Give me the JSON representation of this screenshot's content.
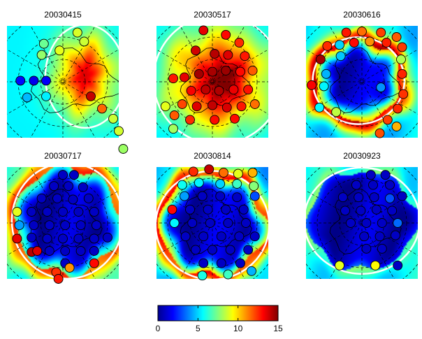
{
  "chart_data": {
    "type": "heatmap",
    "colormap": "jet",
    "colorbar": {
      "range": [
        0,
        15
      ],
      "ticks": [
        "0",
        "5",
        "10",
        "15"
      ]
    },
    "panels": [
      {
        "title": "20030415",
        "field": {
          "type": "blob",
          "center": [
            0.7,
            0.45
          ],
          "peak": 12.5,
          "rx": 0.34,
          "ry": 0.44,
          "background": 5.5
        },
        "contour_color": "#ffffff",
        "stations": [
          {
            "x": 0.31,
            "y": 0.26,
            "v": 7.8
          },
          {
            "x": 0.33,
            "y": 0.16,
            "v": 7.2
          },
          {
            "x": 0.47,
            "y": 0.22,
            "v": 9.0
          },
          {
            "x": 0.63,
            "y": 0.06,
            "v": 8.8
          },
          {
            "x": 0.69,
            "y": 0.14,
            "v": 8.6
          },
          {
            "x": 0.12,
            "y": 0.49,
            "v": 2.0
          },
          {
            "x": 0.24,
            "y": 0.49,
            "v": 1.6
          },
          {
            "x": 0.35,
            "y": 0.49,
            "v": 1.8
          },
          {
            "x": 0.18,
            "y": 0.64,
            "v": 4.6
          },
          {
            "x": 0.35,
            "y": 0.63,
            "v": 5.4
          },
          {
            "x": 0.75,
            "y": 0.63,
            "v": 14.0
          },
          {
            "x": 0.85,
            "y": 0.74,
            "v": 11.6
          },
          {
            "x": 0.95,
            "y": 0.83,
            "v": 8.6
          },
          {
            "x": 1.0,
            "y": 0.94,
            "v": 8.7
          },
          {
            "x": 1.04,
            "y": 1.1,
            "v": 7.9
          }
        ]
      },
      {
        "title": "20030517",
        "field": {
          "type": "blob",
          "center": [
            0.55,
            0.48
          ],
          "peak": 14.5,
          "rx": 0.55,
          "ry": 0.55,
          "background": 5.0
        },
        "contour_color": "#ffffff",
        "stations": [
          {
            "x": 0.42,
            "y": 0.04,
            "v": 13.5
          },
          {
            "x": 0.62,
            "y": 0.08,
            "v": 13.0
          },
          {
            "x": 0.74,
            "y": 0.15,
            "v": 12.5
          },
          {
            "x": 0.35,
            "y": 0.22,
            "v": 13.8
          },
          {
            "x": 0.52,
            "y": 0.25,
            "v": 14.2
          },
          {
            "x": 0.64,
            "y": 0.26,
            "v": 13.6
          },
          {
            "x": 0.79,
            "y": 0.27,
            "v": 12.8
          },
          {
            "x": 0.15,
            "y": 0.47,
            "v": 12.8
          },
          {
            "x": 0.25,
            "y": 0.46,
            "v": 13.5
          },
          {
            "x": 0.38,
            "y": 0.43,
            "v": 14.5
          },
          {
            "x": 0.5,
            "y": 0.41,
            "v": 14.4
          },
          {
            "x": 0.62,
            "y": 0.4,
            "v": 14.6
          },
          {
            "x": 0.75,
            "y": 0.41,
            "v": 13.0
          },
          {
            "x": 0.86,
            "y": 0.4,
            "v": 11.8
          },
          {
            "x": 0.31,
            "y": 0.58,
            "v": 13.2
          },
          {
            "x": 0.44,
            "y": 0.57,
            "v": 14.1
          },
          {
            "x": 0.56,
            "y": 0.58,
            "v": 14.3
          },
          {
            "x": 0.69,
            "y": 0.57,
            "v": 13.4
          },
          {
            "x": 0.82,
            "y": 0.57,
            "v": 12.9
          },
          {
            "x": 0.23,
            "y": 0.7,
            "v": 12.1
          },
          {
            "x": 0.36,
            "y": 0.72,
            "v": 13.6
          },
          {
            "x": 0.5,
            "y": 0.71,
            "v": 14.0
          },
          {
            "x": 0.63,
            "y": 0.73,
            "v": 13.7
          },
          {
            "x": 0.76,
            "y": 0.72,
            "v": 12.8
          },
          {
            "x": 0.88,
            "y": 0.7,
            "v": 11.5
          },
          {
            "x": 0.08,
            "y": 0.72,
            "v": 9.0
          },
          {
            "x": 0.16,
            "y": 0.8,
            "v": 11.8
          },
          {
            "x": 0.3,
            "y": 0.84,
            "v": 12.5
          },
          {
            "x": 0.52,
            "y": 0.84,
            "v": 13.0
          },
          {
            "x": 0.7,
            "y": 0.83,
            "v": 13.0
          },
          {
            "x": 0.15,
            "y": 0.92,
            "v": 8.0
          }
        ]
      },
      {
        "title": "20030616",
        "field": {
          "type": "ring",
          "center": [
            0.47,
            0.49
          ],
          "rx": 0.38,
          "ry": 0.36,
          "ring_width": 0.1,
          "inner": 1.0,
          "ring_peak": 13.5,
          "outer": 5.0
        },
        "contour_color": "#ffffff",
        "stations": [
          {
            "x": 0.36,
            "y": 0.06,
            "v": 12.8
          },
          {
            "x": 0.5,
            "y": 0.05,
            "v": 11.5
          },
          {
            "x": 0.67,
            "y": 0.06,
            "v": 12.2
          },
          {
            "x": 0.81,
            "y": 0.1,
            "v": 11.8
          },
          {
            "x": 0.19,
            "y": 0.18,
            "v": 12.5
          },
          {
            "x": 0.3,
            "y": 0.17,
            "v": 5.0
          },
          {
            "x": 0.43,
            "y": 0.15,
            "v": 13.0
          },
          {
            "x": 0.57,
            "y": 0.14,
            "v": 11.0
          },
          {
            "x": 0.72,
            "y": 0.15,
            "v": 12.7
          },
          {
            "x": 0.86,
            "y": 0.19,
            "v": 12.3
          },
          {
            "x": 0.31,
            "y": 0.27,
            "v": 4.8
          },
          {
            "x": 0.13,
            "y": 0.3,
            "v": 14.5
          },
          {
            "x": 0.18,
            "y": 0.43,
            "v": 4.5
          },
          {
            "x": 0.85,
            "y": 0.3,
            "v": 8.2
          },
          {
            "x": 0.05,
            "y": 0.53,
            "v": 13.2
          },
          {
            "x": 0.16,
            "y": 0.54,
            "v": 5.5
          },
          {
            "x": 0.67,
            "y": 0.55,
            "v": 4.0
          },
          {
            "x": 0.86,
            "y": 0.43,
            "v": 12.6
          },
          {
            "x": 0.87,
            "y": 0.61,
            "v": 12.4
          },
          {
            "x": 0.82,
            "y": 0.74,
            "v": 12.5
          },
          {
            "x": 0.12,
            "y": 0.73,
            "v": 5.6
          },
          {
            "x": 0.27,
            "y": 0.77,
            "v": 8.4
          },
          {
            "x": 0.73,
            "y": 0.84,
            "v": 12.2
          },
          {
            "x": 0.66,
            "y": 0.96,
            "v": 12.0
          },
          {
            "x": 0.81,
            "y": 0.9,
            "v": 10.5
          }
        ]
      },
      {
        "title": "20030717",
        "field": {
          "type": "ring",
          "center": [
            0.54,
            0.48
          ],
          "rx": 0.46,
          "ry": 0.48,
          "ring_width": 0.1,
          "inner": 0.8,
          "ring_peak": 12.0,
          "outer": 6.0
        },
        "contour_color": "#ffffff",
        "stations": [
          {
            "x": 0.5,
            "y": 0.07,
            "v": 1.0
          },
          {
            "x": 0.6,
            "y": 0.07,
            "v": 1.0
          },
          {
            "x": 0.42,
            "y": 0.17,
            "v": 1.0
          },
          {
            "x": 0.55,
            "y": 0.17,
            "v": 1.0
          },
          {
            "x": 0.68,
            "y": 0.18,
            "v": 1.0
          },
          {
            "x": 0.31,
            "y": 0.28,
            "v": 1.0
          },
          {
            "x": 0.45,
            "y": 0.28,
            "v": 1.0
          },
          {
            "x": 0.59,
            "y": 0.29,
            "v": 1.0
          },
          {
            "x": 0.73,
            "y": 0.28,
            "v": 1.0
          },
          {
            "x": 0.09,
            "y": 0.4,
            "v": 9.0
          },
          {
            "x": 0.22,
            "y": 0.4,
            "v": 1.0
          },
          {
            "x": 0.36,
            "y": 0.4,
            "v": 1.0
          },
          {
            "x": 0.5,
            "y": 0.4,
            "v": 1.0
          },
          {
            "x": 0.64,
            "y": 0.4,
            "v": 1.0
          },
          {
            "x": 0.78,
            "y": 0.4,
            "v": 1.0
          },
          {
            "x": 0.11,
            "y": 0.52,
            "v": 4.2
          },
          {
            "x": 0.24,
            "y": 0.52,
            "v": 1.0
          },
          {
            "x": 0.38,
            "y": 0.52,
            "v": 1.0
          },
          {
            "x": 0.52,
            "y": 0.52,
            "v": 1.0
          },
          {
            "x": 0.66,
            "y": 0.52,
            "v": 1.0
          },
          {
            "x": 0.8,
            "y": 0.52,
            "v": 1.0
          },
          {
            "x": 0.09,
            "y": 0.64,
            "v": 13.5
          },
          {
            "x": 0.22,
            "y": 0.63,
            "v": 1.0
          },
          {
            "x": 0.36,
            "y": 0.64,
            "v": 1.0
          },
          {
            "x": 0.5,
            "y": 0.64,
            "v": 1.0
          },
          {
            "x": 0.64,
            "y": 0.64,
            "v": 1.0
          },
          {
            "x": 0.78,
            "y": 0.64,
            "v": 1.0
          },
          {
            "x": 0.9,
            "y": 0.63,
            "v": 1.0
          },
          {
            "x": 0.22,
            "y": 0.76,
            "v": 14.2
          },
          {
            "x": 0.27,
            "y": 0.75,
            "v": 13.6
          },
          {
            "x": 0.38,
            "y": 0.75,
            "v": 1.0
          },
          {
            "x": 0.52,
            "y": 0.75,
            "v": 1.0
          },
          {
            "x": 0.66,
            "y": 0.75,
            "v": 1.0
          },
          {
            "x": 0.78,
            "y": 0.75,
            "v": 1.0
          },
          {
            "x": 0.52,
            "y": 0.86,
            "v": 1.0
          },
          {
            "x": 0.78,
            "y": 0.86,
            "v": 13.0
          },
          {
            "x": 0.44,
            "y": 0.94,
            "v": 12.4
          },
          {
            "x": 0.46,
            "y": 1.0,
            "v": 12.8
          },
          {
            "x": 0.56,
            "y": 0.9,
            "v": 11.0
          }
        ]
      },
      {
        "title": "20030814",
        "field": {
          "type": "ring",
          "center": [
            0.5,
            0.52
          ],
          "rx": 0.47,
          "ry": 0.45,
          "ring_width": 0.09,
          "inner": 1.0,
          "ring_peak": 12.5,
          "outer": 4.5
        },
        "contour_color": "#ffffff",
        "stations": [
          {
            "x": 0.33,
            "y": 0.04,
            "v": 12.5
          },
          {
            "x": 0.47,
            "y": 0.02,
            "v": 14.0
          },
          {
            "x": 0.6,
            "y": 0.05,
            "v": 11.5
          },
          {
            "x": 0.73,
            "y": 0.06,
            "v": 9.0
          },
          {
            "x": 0.86,
            "y": 0.05,
            "v": 10.5
          },
          {
            "x": 0.23,
            "y": 0.16,
            "v": 5.8
          },
          {
            "x": 0.38,
            "y": 0.14,
            "v": 5.5
          },
          {
            "x": 0.57,
            "y": 0.15,
            "v": 5.0
          },
          {
            "x": 0.72,
            "y": 0.15,
            "v": 6.5
          },
          {
            "x": 0.87,
            "y": 0.17,
            "v": 7.6
          },
          {
            "x": 0.25,
            "y": 0.26,
            "v": 4.2
          },
          {
            "x": 0.41,
            "y": 0.26,
            "v": 1.0
          },
          {
            "x": 0.57,
            "y": 0.26,
            "v": 1.0
          },
          {
            "x": 0.72,
            "y": 0.27,
            "v": 1.0
          },
          {
            "x": 0.88,
            "y": 0.26,
            "v": 3.0
          },
          {
            "x": 0.14,
            "y": 0.38,
            "v": 13.0
          },
          {
            "x": 0.3,
            "y": 0.38,
            "v": 1.0
          },
          {
            "x": 0.46,
            "y": 0.38,
            "v": 1.0
          },
          {
            "x": 0.62,
            "y": 0.38,
            "v": 1.0
          },
          {
            "x": 0.78,
            "y": 0.38,
            "v": 1.0
          },
          {
            "x": 0.16,
            "y": 0.5,
            "v": 5.5
          },
          {
            "x": 0.32,
            "y": 0.5,
            "v": 1.0
          },
          {
            "x": 0.48,
            "y": 0.5,
            "v": 1.0
          },
          {
            "x": 0.64,
            "y": 0.5,
            "v": 1.0
          },
          {
            "x": 0.8,
            "y": 0.5,
            "v": 1.0
          },
          {
            "x": 0.26,
            "y": 0.62,
            "v": 1.0
          },
          {
            "x": 0.42,
            "y": 0.62,
            "v": 1.0
          },
          {
            "x": 0.58,
            "y": 0.62,
            "v": 1.0
          },
          {
            "x": 0.74,
            "y": 0.62,
            "v": 1.0
          },
          {
            "x": 0.88,
            "y": 0.62,
            "v": 1.0
          },
          {
            "x": 0.35,
            "y": 0.74,
            "v": 1.0
          },
          {
            "x": 0.5,
            "y": 0.74,
            "v": 1.0
          },
          {
            "x": 0.66,
            "y": 0.74,
            "v": 1.0
          },
          {
            "x": 0.82,
            "y": 0.74,
            "v": 1.0
          },
          {
            "x": 0.42,
            "y": 0.86,
            "v": 1.0
          },
          {
            "x": 0.58,
            "y": 0.86,
            "v": 1.0
          },
          {
            "x": 0.75,
            "y": 0.86,
            "v": 1.0
          },
          {
            "x": 0.41,
            "y": 0.97,
            "v": 6.0
          },
          {
            "x": 0.64,
            "y": 0.96,
            "v": 6.5
          },
          {
            "x": 0.85,
            "y": 0.93,
            "v": 4.5
          }
        ]
      },
      {
        "title": "20030923",
        "field": {
          "type": "ring",
          "center": [
            0.5,
            0.48
          ],
          "rx": 0.48,
          "ry": 0.44,
          "ring_width": 0.06,
          "inner": 0.9,
          "ring_peak": 7.0,
          "outer": 5.5
        },
        "contour_color": "#ffffff",
        "stations": [
          {
            "x": 0.58,
            "y": 0.07,
            "v": 1.0
          },
          {
            "x": 0.71,
            "y": 0.07,
            "v": 1.0
          },
          {
            "x": 0.45,
            "y": 0.16,
            "v": 1.0
          },
          {
            "x": 0.6,
            "y": 0.16,
            "v": 1.0
          },
          {
            "x": 0.75,
            "y": 0.16,
            "v": 1.0
          },
          {
            "x": 0.33,
            "y": 0.27,
            "v": 1.0
          },
          {
            "x": 0.47,
            "y": 0.27,
            "v": 1.0
          },
          {
            "x": 0.61,
            "y": 0.27,
            "v": 1.0
          },
          {
            "x": 0.75,
            "y": 0.28,
            "v": 3.0
          },
          {
            "x": 0.86,
            "y": 0.26,
            "v": 1.0
          },
          {
            "x": 0.35,
            "y": 0.39,
            "v": 1.0
          },
          {
            "x": 0.49,
            "y": 0.39,
            "v": 1.0
          },
          {
            "x": 0.63,
            "y": 0.38,
            "v": 1.0
          },
          {
            "x": 0.77,
            "y": 0.39,
            "v": 1.0
          },
          {
            "x": 0.4,
            "y": 0.5,
            "v": 1.0
          },
          {
            "x": 0.54,
            "y": 0.5,
            "v": 1.0
          },
          {
            "x": 0.68,
            "y": 0.5,
            "v": 1.0
          },
          {
            "x": 0.82,
            "y": 0.5,
            "v": 3.4
          },
          {
            "x": 0.52,
            "y": 0.62,
            "v": 1.0
          },
          {
            "x": 0.66,
            "y": 0.62,
            "v": 1.0
          },
          {
            "x": 0.8,
            "y": 0.61,
            "v": 1.0
          },
          {
            "x": 0.54,
            "y": 0.73,
            "v": 1.0
          },
          {
            "x": 0.68,
            "y": 0.73,
            "v": 1.0
          },
          {
            "x": 0.3,
            "y": 0.88,
            "v": 9.0
          },
          {
            "x": 0.62,
            "y": 0.88,
            "v": 9.4
          },
          {
            "x": 0.82,
            "y": 0.88,
            "v": 1.0
          }
        ]
      }
    ]
  }
}
